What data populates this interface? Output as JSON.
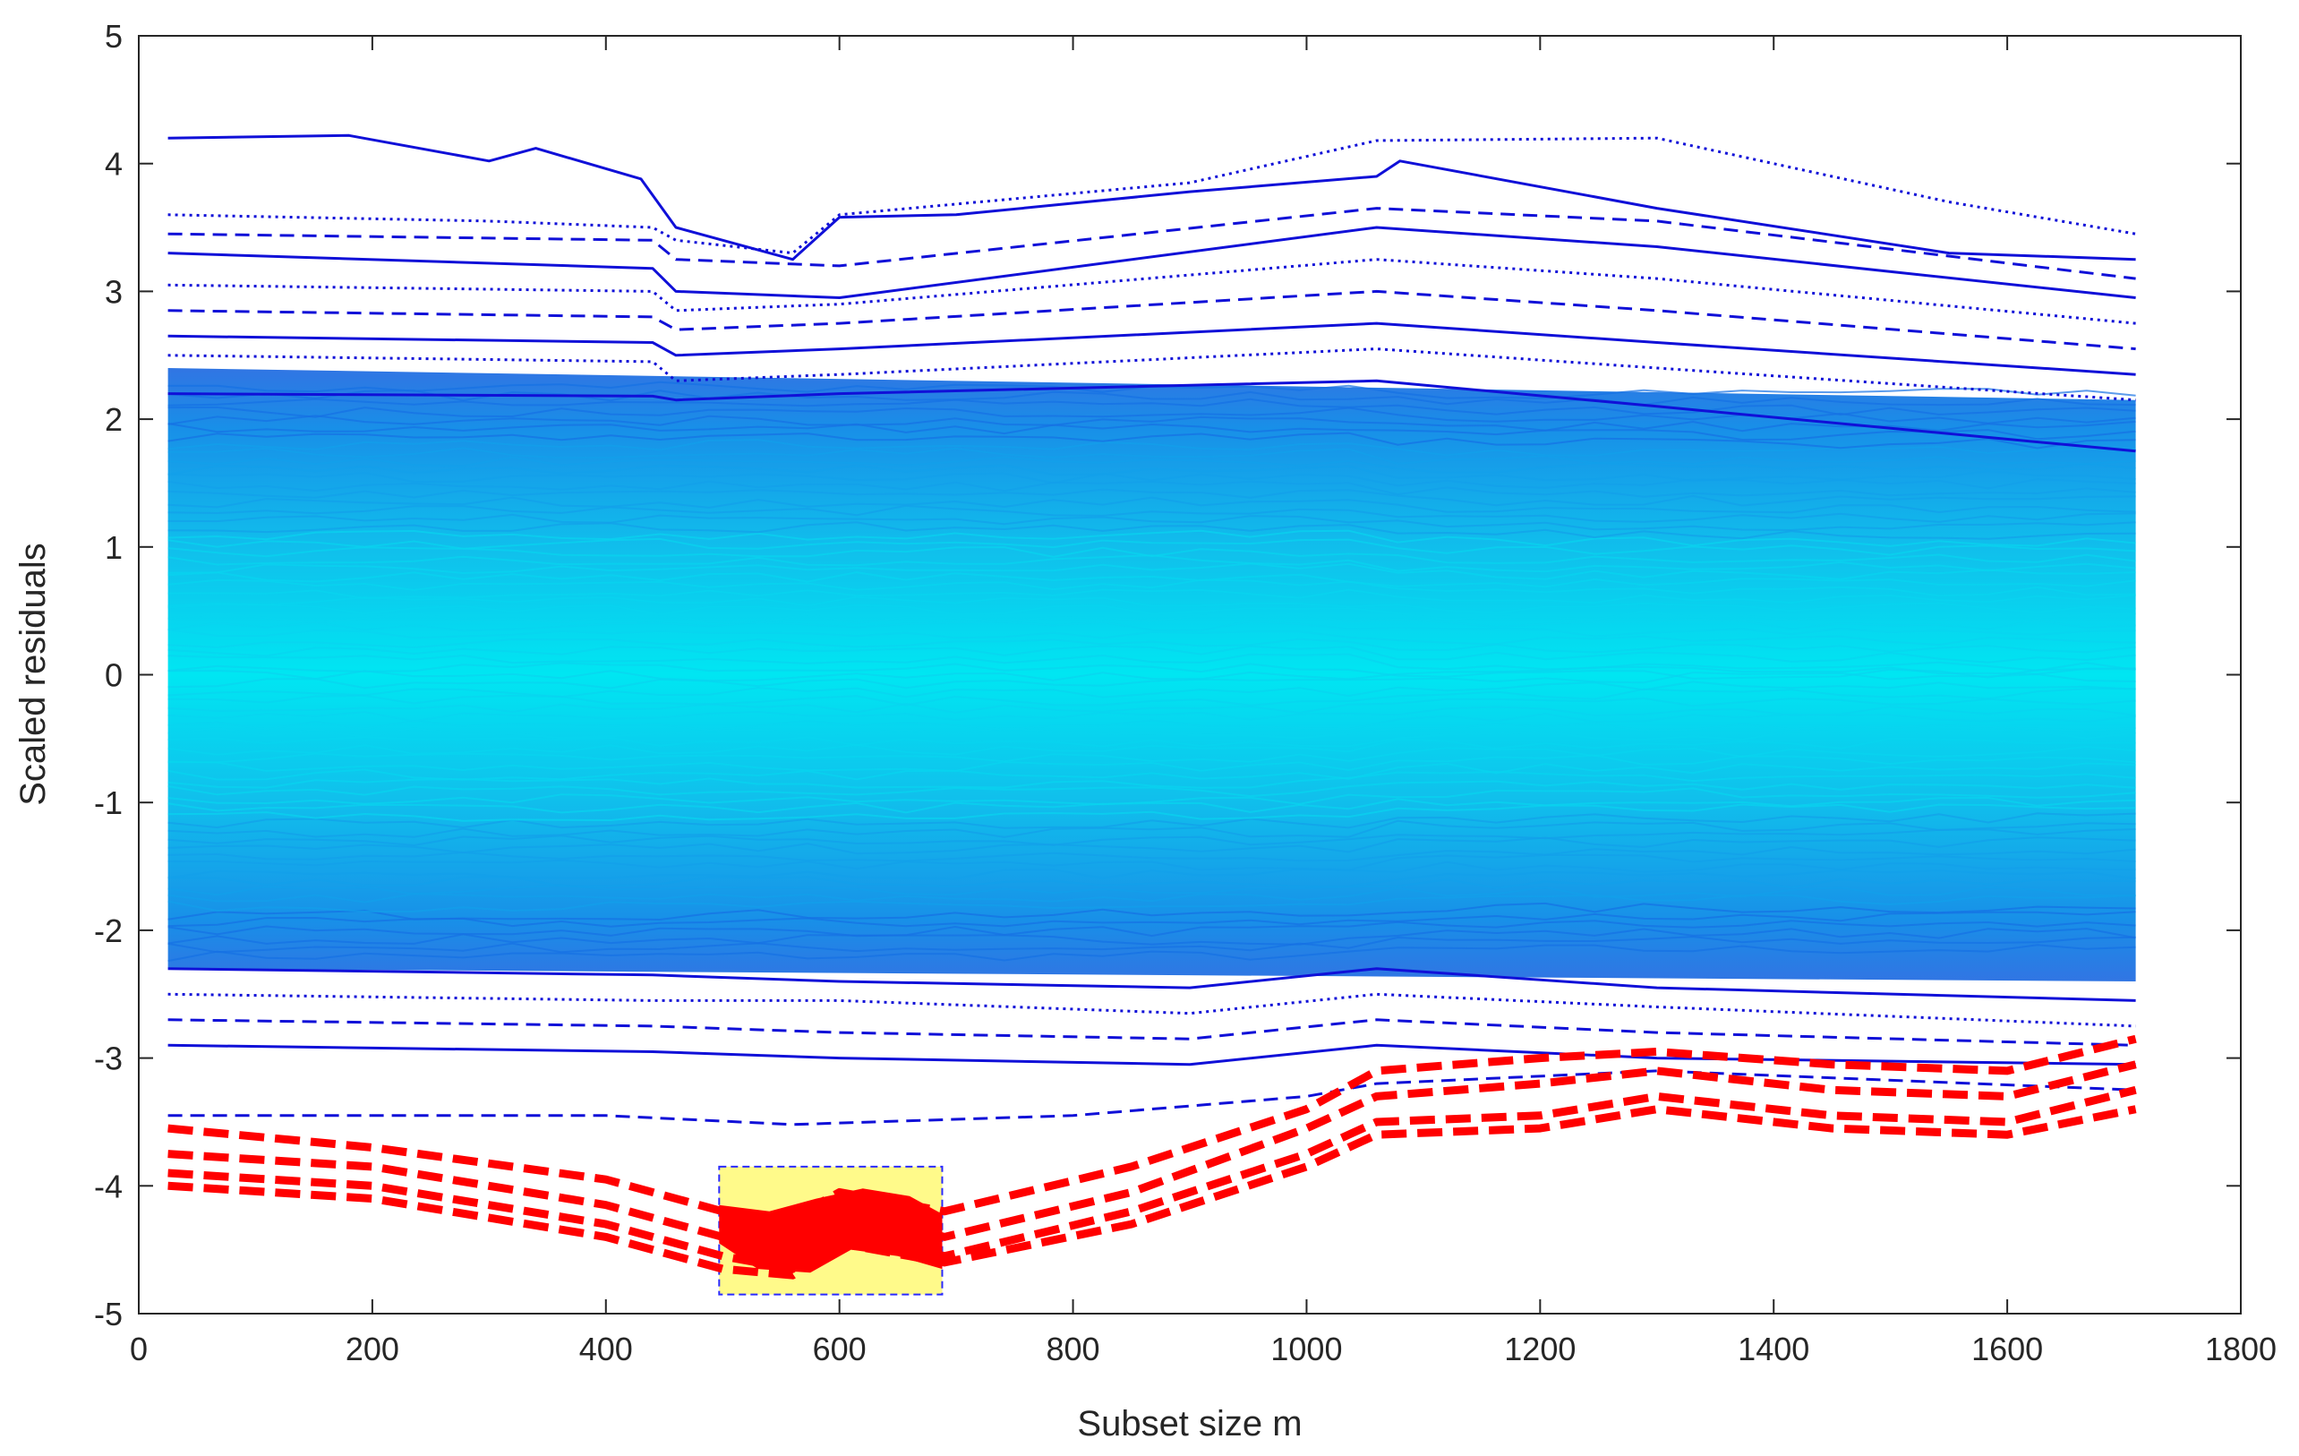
{
  "chart_data": {
    "type": "line",
    "title": "",
    "xlabel": "Subset size m",
    "ylabel": "Scaled residuals",
    "xlim": [
      0,
      1800
    ],
    "ylim": [
      -5,
      5
    ],
    "xticks": [
      0,
      200,
      400,
      600,
      800,
      1000,
      1200,
      1400,
      1600,
      1800
    ],
    "yticks": [
      -5,
      -4,
      -3,
      -2,
      -1,
      0,
      1,
      2,
      3,
      4,
      5
    ],
    "x_range_of_curves": [
      25,
      1710
    ],
    "grid": false,
    "colors": {
      "bulk_light": "#00e8f0",
      "bulk_mid": "#12a8e8",
      "bulk_dark": "#1a66e0",
      "extreme": "#1010d8",
      "outlier": "#ff0000",
      "highlight_fill": "#fffa8a",
      "highlight_border": "#2a2aff"
    },
    "highlight_box": {
      "x": [
        497,
        688
      ],
      "y": [
        -4.85,
        -3.85
      ]
    },
    "series": [
      {
        "name": "upper-1",
        "style": "solid",
        "group": "extreme",
        "x": [
          25,
          180,
          300,
          340,
          430,
          460,
          560,
          600,
          700,
          900,
          1060,
          1080,
          1300,
          1550,
          1710
        ],
        "y": [
          4.2,
          4.22,
          4.02,
          4.12,
          3.88,
          3.5,
          3.25,
          3.58,
          3.6,
          3.78,
          3.9,
          4.02,
          3.65,
          3.3,
          3.25
        ]
      },
      {
        "name": "upper-2",
        "style": "dotted",
        "group": "extreme",
        "x": [
          25,
          300,
          440,
          460,
          560,
          600,
          900,
          1060,
          1300,
          1550,
          1710
        ],
        "y": [
          3.6,
          3.55,
          3.5,
          3.4,
          3.3,
          3.6,
          3.85,
          4.18,
          4.2,
          3.7,
          3.45
        ]
      },
      {
        "name": "upper-3",
        "style": "dashed",
        "group": "extreme",
        "x": [
          25,
          440,
          460,
          600,
          1060,
          1300,
          1710
        ],
        "y": [
          3.45,
          3.4,
          3.25,
          3.2,
          3.65,
          3.55,
          3.1
        ]
      },
      {
        "name": "upper-4",
        "style": "solid",
        "group": "extreme",
        "x": [
          25,
          440,
          460,
          600,
          1060,
          1300,
          1710
        ],
        "y": [
          3.3,
          3.18,
          3.0,
          2.95,
          3.5,
          3.35,
          2.95
        ]
      },
      {
        "name": "upper-5",
        "style": "dotted",
        "group": "extreme",
        "x": [
          25,
          440,
          460,
          600,
          1060,
          1300,
          1710
        ],
        "y": [
          3.05,
          3.0,
          2.85,
          2.9,
          3.25,
          3.1,
          2.75
        ]
      },
      {
        "name": "upper-6",
        "style": "dashed",
        "group": "extreme",
        "x": [
          25,
          440,
          460,
          600,
          1060,
          1300,
          1710
        ],
        "y": [
          2.85,
          2.8,
          2.7,
          2.75,
          3.0,
          2.85,
          2.55
        ]
      },
      {
        "name": "upper-7",
        "style": "solid",
        "group": "extreme",
        "x": [
          25,
          440,
          460,
          600,
          1060,
          1300,
          1710
        ],
        "y": [
          2.65,
          2.6,
          2.5,
          2.55,
          2.75,
          2.6,
          2.35
        ]
      },
      {
        "name": "upper-8",
        "style": "dotted",
        "group": "extreme",
        "x": [
          25,
          440,
          460,
          600,
          1060,
          1300,
          1710
        ],
        "y": [
          2.5,
          2.45,
          2.3,
          2.35,
          2.55,
          2.4,
          2.15
        ]
      },
      {
        "name": "upper-9",
        "style": "solid",
        "group": "extreme",
        "x": [
          25,
          440,
          460,
          600,
          1060,
          1300,
          1710
        ],
        "y": [
          2.2,
          2.18,
          2.15,
          2.2,
          2.3,
          2.1,
          1.75
        ]
      },
      {
        "name": "lower-1",
        "style": "solid",
        "group": "extreme",
        "x": [
          25,
          440,
          600,
          900,
          1060,
          1300,
          1710
        ],
        "y": [
          -2.3,
          -2.35,
          -2.4,
          -2.45,
          -2.3,
          -2.45,
          -2.55
        ]
      },
      {
        "name": "lower-2",
        "style": "dotted",
        "group": "extreme",
        "x": [
          25,
          440,
          600,
          900,
          1060,
          1300,
          1710
        ],
        "y": [
          -2.5,
          -2.55,
          -2.55,
          -2.65,
          -2.5,
          -2.6,
          -2.75
        ]
      },
      {
        "name": "lower-3",
        "style": "dashed",
        "group": "extreme",
        "x": [
          25,
          440,
          600,
          900,
          1060,
          1300,
          1710
        ],
        "y": [
          -2.7,
          -2.75,
          -2.8,
          -2.85,
          -2.7,
          -2.8,
          -2.9
        ]
      },
      {
        "name": "lower-4",
        "style": "solid",
        "group": "extreme",
        "x": [
          25,
          440,
          600,
          900,
          1060,
          1300,
          1710
        ],
        "y": [
          -2.9,
          -2.95,
          -3.0,
          -3.05,
          -2.9,
          -3.0,
          -3.05
        ]
      },
      {
        "name": "lower-5",
        "style": "dashed",
        "group": "extreme",
        "x": [
          25,
          200,
          400,
          560,
          800,
          1000,
          1060,
          1300,
          1710
        ],
        "y": [
          -3.45,
          -3.45,
          -3.45,
          -3.52,
          -3.45,
          -3.3,
          -3.2,
          -3.1,
          -3.25
        ]
      },
      {
        "name": "outlier-1",
        "style": "dashed",
        "group": "outlier",
        "x": [
          25,
          200,
          400,
          500,
          560,
          600,
          690,
          850,
          1000,
          1060,
          1200,
          1300,
          1450,
          1600,
          1710
        ],
        "y": [
          -3.55,
          -3.7,
          -3.95,
          -4.2,
          -4.25,
          -4.05,
          -4.2,
          -3.85,
          -3.4,
          -3.1,
          -3.0,
          -2.95,
          -3.05,
          -3.1,
          -2.85
        ]
      },
      {
        "name": "outlier-2",
        "style": "dashed",
        "group": "outlier",
        "x": [
          25,
          200,
          400,
          500,
          560,
          600,
          690,
          850,
          1000,
          1060,
          1200,
          1300,
          1450,
          1600,
          1710
        ],
        "y": [
          -3.75,
          -3.85,
          -4.15,
          -4.4,
          -4.5,
          -4.2,
          -4.4,
          -4.05,
          -3.55,
          -3.3,
          -3.2,
          -3.1,
          -3.25,
          -3.3,
          -3.05
        ]
      },
      {
        "name": "outlier-3",
        "style": "dashed",
        "group": "outlier",
        "x": [
          25,
          200,
          400,
          500,
          560,
          600,
          690,
          850,
          1000,
          1060,
          1200,
          1300,
          1450,
          1600,
          1710
        ],
        "y": [
          -3.9,
          -4.0,
          -4.3,
          -4.55,
          -4.65,
          -4.35,
          -4.55,
          -4.2,
          -3.75,
          -3.5,
          -3.45,
          -3.3,
          -3.45,
          -3.5,
          -3.25
        ]
      },
      {
        "name": "outlier-4",
        "style": "dashed",
        "group": "outlier",
        "x": [
          25,
          200,
          400,
          500,
          560,
          600,
          690,
          850,
          1000,
          1060,
          1200,
          1300,
          1450,
          1600,
          1710
        ],
        "y": [
          -4.0,
          -4.1,
          -4.4,
          -4.65,
          -4.7,
          -4.45,
          -4.6,
          -4.3,
          -3.85,
          -3.6,
          -3.55,
          -3.4,
          -3.55,
          -3.6,
          -3.4
        ]
      }
    ]
  }
}
